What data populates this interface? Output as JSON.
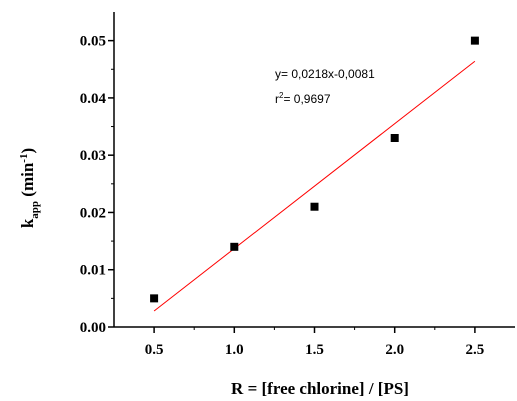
{
  "chart_data": {
    "type": "scatter",
    "xlabel": "R = [free chlorine] / [PS]",
    "ylabel": {
      "main": "k",
      "sub": "app",
      "unit_open": " (min",
      "unit_sup": "-1",
      "unit_close": ")"
    },
    "xlim": [
      0.25,
      2.75
    ],
    "ylim": [
      0.0,
      0.055
    ],
    "x_ticks": [
      0.5,
      1.0,
      1.5,
      2.0,
      2.5
    ],
    "x_tick_labels": [
      "0.5",
      "1.0",
      "1.5",
      "2.0",
      "2.5"
    ],
    "y_ticks": [
      0.0,
      0.01,
      0.02,
      0.03,
      0.04,
      0.05
    ],
    "y_tick_labels": [
      "0.00",
      "0.01",
      "0.02",
      "0.03",
      "0.04",
      "0.05"
    ],
    "grid": false,
    "series": [
      {
        "marker": "square",
        "color": "#000000",
        "points": [
          {
            "x": 0.5,
            "y": 0.005
          },
          {
            "x": 1.0,
            "y": 0.014
          },
          {
            "x": 1.5,
            "y": 0.021
          },
          {
            "x": 2.0,
            "y": 0.033
          },
          {
            "x": 2.5,
            "y": 0.05
          }
        ]
      }
    ],
    "fit": {
      "slope": 0.0218,
      "intercept": -0.0081,
      "x_range": [
        0.5,
        2.5
      ],
      "color": "#ff0000"
    },
    "annotation": {
      "equation": "y= 0,0218x-0,0081",
      "r2_prefix": "r",
      "r2_sup": "2",
      "r2_value": "= 0,9697"
    }
  }
}
